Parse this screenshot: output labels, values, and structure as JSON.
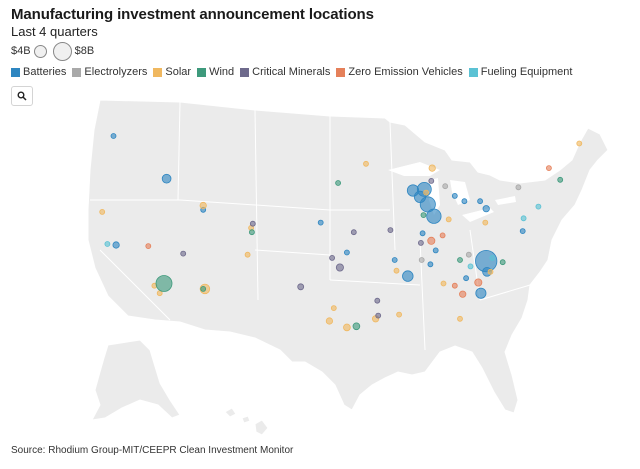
{
  "title": "Manufacturing investment announcement locations",
  "subtitle": "Last 4 quarters",
  "size_legend": {
    "small_label": "$4B",
    "large_label": "$8B",
    "small_value": 4,
    "large_value": 8
  },
  "legend": [
    {
      "label": "Batteries",
      "color": "#2e86c1"
    },
    {
      "label": "Electrolyzers",
      "color": "#a9a9a9"
    },
    {
      "label": "Solar",
      "color": "#f0b860"
    },
    {
      "label": "Wind",
      "color": "#3e9a7c"
    },
    {
      "label": "Critical Minerals",
      "color": "#6e6a8c"
    },
    {
      "label": "Zero Emission Vehicles",
      "color": "#e5805a"
    },
    {
      "label": "Fueling Equipment",
      "color": "#5bc2d4"
    }
  ],
  "search_icon": "search-icon",
  "source": "Source: Rhodium Group-MIT/CEEPR Clean Investment Monitor",
  "map_data": {
    "region": "Contiguous United States",
    "basemap_color": "#ebebeb",
    "markers": [
      {
        "category": "Batteries",
        "lon": -122.3,
        "lat": 47.6,
        "amount_b": 0.3
      },
      {
        "category": "Batteries",
        "lon": -116.2,
        "lat": 43.6,
        "amount_b": 1.5
      },
      {
        "category": "Batteries",
        "lon": -122.0,
        "lat": 37.4,
        "amount_b": 0.8
      },
      {
        "category": "Batteries",
        "lon": -112.0,
        "lat": 40.7,
        "amount_b": 0.2
      },
      {
        "category": "Batteries",
        "lon": -98.5,
        "lat": 39.5,
        "amount_b": 0.2
      },
      {
        "category": "Batteries",
        "lon": -87.9,
        "lat": 42.5,
        "amount_b": 2.5
      },
      {
        "category": "Batteries",
        "lon": -86.6,
        "lat": 42.6,
        "amount_b": 3.8
      },
      {
        "category": "Batteries",
        "lon": -86.2,
        "lat": 41.2,
        "amount_b": 4.5
      },
      {
        "category": "Batteries",
        "lon": -87.1,
        "lat": 41.9,
        "amount_b": 2.5
      },
      {
        "category": "Batteries",
        "lon": -85.5,
        "lat": 40.1,
        "amount_b": 4.0
      },
      {
        "category": "Batteries",
        "lon": -83.1,
        "lat": 42.0,
        "amount_b": 0.3
      },
      {
        "category": "Batteries",
        "lon": -82.0,
        "lat": 41.5,
        "amount_b": 0.3
      },
      {
        "category": "Batteries",
        "lon": -80.2,
        "lat": 41.5,
        "amount_b": 0.4
      },
      {
        "category": "Batteries",
        "lon": -79.5,
        "lat": 40.8,
        "amount_b": 0.8
      },
      {
        "category": "Batteries",
        "lon": -75.3,
        "lat": 38.7,
        "amount_b": 0.3
      },
      {
        "category": "Batteries",
        "lon": -86.8,
        "lat": 38.5,
        "amount_b": 0.3
      },
      {
        "category": "Batteries",
        "lon": -85.3,
        "lat": 36.9,
        "amount_b": 0.3
      },
      {
        "category": "Batteries",
        "lon": -90.0,
        "lat": 36.0,
        "amount_b": 0.3
      },
      {
        "category": "Batteries",
        "lon": -88.5,
        "lat": 34.5,
        "amount_b": 2.2
      },
      {
        "category": "Batteries",
        "lon": -85.9,
        "lat": 35.6,
        "amount_b": 0.3
      },
      {
        "category": "Batteries",
        "lon": -79.5,
        "lat": 35.9,
        "amount_b": 8.8
      },
      {
        "category": "Batteries",
        "lon": -79.4,
        "lat": 34.9,
        "amount_b": 1.5
      },
      {
        "category": "Batteries",
        "lon": -81.8,
        "lat": 34.3,
        "amount_b": 0.5
      },
      {
        "category": "Batteries",
        "lon": -80.1,
        "lat": 32.9,
        "amount_b": 2.0
      },
      {
        "category": "Batteries",
        "lon": -95.5,
        "lat": 36.7,
        "amount_b": 0.3
      },
      {
        "category": "Electrolyzers",
        "lon": -84.2,
        "lat": 42.9,
        "amount_b": 0.3
      },
      {
        "category": "Electrolyzers",
        "lon": -86.9,
        "lat": 36.0,
        "amount_b": 0.3
      },
      {
        "category": "Electrolyzers",
        "lon": -81.5,
        "lat": 36.5,
        "amount_b": 0.3
      },
      {
        "category": "Electrolyzers",
        "lon": -75.8,
        "lat": 42.8,
        "amount_b": 0.3
      },
      {
        "category": "Solar",
        "lon": -68.8,
        "lat": 46.9,
        "amount_b": 0.2
      },
      {
        "category": "Solar",
        "lon": -93.3,
        "lat": 45.0,
        "amount_b": 0.2
      },
      {
        "category": "Solar",
        "lon": -85.7,
        "lat": 44.6,
        "amount_b": 0.8
      },
      {
        "category": "Solar",
        "lon": -86.4,
        "lat": 42.3,
        "amount_b": 0.3
      },
      {
        "category": "Solar",
        "lon": -123.6,
        "lat": 40.5,
        "amount_b": 0.2
      },
      {
        "category": "Solar",
        "lon": -112.0,
        "lat": 41.1,
        "amount_b": 0.8
      },
      {
        "category": "Solar",
        "lon": -106.5,
        "lat": 39.0,
        "amount_b": 0.3
      },
      {
        "category": "Solar",
        "lon": -106.9,
        "lat": 36.5,
        "amount_b": 0.3
      },
      {
        "category": "Solar",
        "lon": -111.8,
        "lat": 33.3,
        "amount_b": 1.8
      },
      {
        "category": "Solar",
        "lon": -117.6,
        "lat": 33.6,
        "amount_b": 0.2
      },
      {
        "category": "Solar",
        "lon": -117.0,
        "lat": 32.9,
        "amount_b": 0.4
      },
      {
        "category": "Solar",
        "lon": -97.0,
        "lat": 31.5,
        "amount_b": 0.2
      },
      {
        "category": "Solar",
        "lon": -97.5,
        "lat": 30.3,
        "amount_b": 0.8
      },
      {
        "category": "Solar",
        "lon": -95.5,
        "lat": 29.7,
        "amount_b": 0.9
      },
      {
        "category": "Solar",
        "lon": -92.2,
        "lat": 30.5,
        "amount_b": 0.8
      },
      {
        "category": "Solar",
        "lon": -89.5,
        "lat": 30.9,
        "amount_b": 0.3
      },
      {
        "category": "Solar",
        "lon": -89.8,
        "lat": 35.0,
        "amount_b": 0.3
      },
      {
        "category": "Solar",
        "lon": -83.8,
        "lat": 39.8,
        "amount_b": 0.3
      },
      {
        "category": "Solar",
        "lon": -84.4,
        "lat": 33.8,
        "amount_b": 0.3
      },
      {
        "category": "Solar",
        "lon": -82.5,
        "lat": 30.5,
        "amount_b": 0.3
      },
      {
        "category": "Solar",
        "lon": -79.0,
        "lat": 34.9,
        "amount_b": 0.4
      },
      {
        "category": "Solar",
        "lon": -79.6,
        "lat": 39.5,
        "amount_b": 0.3
      },
      {
        "category": "Wind",
        "lon": -96.5,
        "lat": 43.2,
        "amount_b": 0.2
      },
      {
        "category": "Wind",
        "lon": -106.4,
        "lat": 38.6,
        "amount_b": 0.3
      },
      {
        "category": "Wind",
        "lon": -116.5,
        "lat": 33.8,
        "amount_b": 5.0
      },
      {
        "category": "Wind",
        "lon": -112.0,
        "lat": 33.3,
        "amount_b": 0.3
      },
      {
        "category": "Wind",
        "lon": -94.4,
        "lat": 29.8,
        "amount_b": 0.9
      },
      {
        "category": "Wind",
        "lon": -86.7,
        "lat": 40.2,
        "amount_b": 0.3
      },
      {
        "category": "Wind",
        "lon": -82.5,
        "lat": 36.0,
        "amount_b": 0.3
      },
      {
        "category": "Wind",
        "lon": -77.6,
        "lat": 35.8,
        "amount_b": 0.3
      },
      {
        "category": "Wind",
        "lon": -71.0,
        "lat": 43.5,
        "amount_b": 0.2
      },
      {
        "category": "Critical Minerals",
        "lon": -114.3,
        "lat": 36.6,
        "amount_b": 0.2
      },
      {
        "category": "Critical Minerals",
        "lon": -106.3,
        "lat": 39.4,
        "amount_b": 0.3
      },
      {
        "category": "Critical Minerals",
        "lon": -94.7,
        "lat": 38.6,
        "amount_b": 0.3
      },
      {
        "category": "Critical Minerals",
        "lon": -97.2,
        "lat": 36.2,
        "amount_b": 0.4
      },
      {
        "category": "Critical Minerals",
        "lon": -96.3,
        "lat": 35.3,
        "amount_b": 1.0
      },
      {
        "category": "Critical Minerals",
        "lon": -100.8,
        "lat": 33.5,
        "amount_b": 0.7
      },
      {
        "category": "Critical Minerals",
        "lon": -92.0,
        "lat": 32.2,
        "amount_b": 0.3
      },
      {
        "category": "Critical Minerals",
        "lon": -91.9,
        "lat": 30.8,
        "amount_b": 0.3
      },
      {
        "category": "Critical Minerals",
        "lon": -85.8,
        "lat": 43.4,
        "amount_b": 0.3
      },
      {
        "category": "Critical Minerals",
        "lon": -90.5,
        "lat": 38.8,
        "amount_b": 0.2
      },
      {
        "category": "Critical Minerals",
        "lon": -87.0,
        "lat": 37.6,
        "amount_b": 0.3
      },
      {
        "category": "Zero Emission Vehicles",
        "lon": -118.3,
        "lat": 37.3,
        "amount_b": 0.2
      },
      {
        "category": "Zero Emission Vehicles",
        "lon": -85.8,
        "lat": 37.8,
        "amount_b": 1.0
      },
      {
        "category": "Zero Emission Vehicles",
        "lon": -84.5,
        "lat": 38.3,
        "amount_b": 0.3
      },
      {
        "category": "Zero Emission Vehicles",
        "lon": -72.3,
        "lat": 44.6,
        "amount_b": 0.2
      },
      {
        "category": "Zero Emission Vehicles",
        "lon": -80.4,
        "lat": 33.9,
        "amount_b": 1.0
      },
      {
        "category": "Zero Emission Vehicles",
        "lon": -82.2,
        "lat": 32.8,
        "amount_b": 0.8
      },
      {
        "category": "Zero Emission Vehicles",
        "lon": -83.1,
        "lat": 33.6,
        "amount_b": 0.2
      },
      {
        "category": "Fueling Equipment",
        "lon": -123.0,
        "lat": 37.5,
        "amount_b": 0.3
      },
      {
        "category": "Fueling Equipment",
        "lon": -75.2,
        "lat": 39.9,
        "amount_b": 0.3
      },
      {
        "category": "Fueling Equipment",
        "lon": -73.5,
        "lat": 41.0,
        "amount_b": 0.3
      },
      {
        "category": "Fueling Equipment",
        "lon": -78.8,
        "lat": 36.2,
        "amount_b": 0.3
      },
      {
        "category": "Fueling Equipment",
        "lon": -81.3,
        "lat": 35.4,
        "amount_b": 0.3
      }
    ]
  }
}
